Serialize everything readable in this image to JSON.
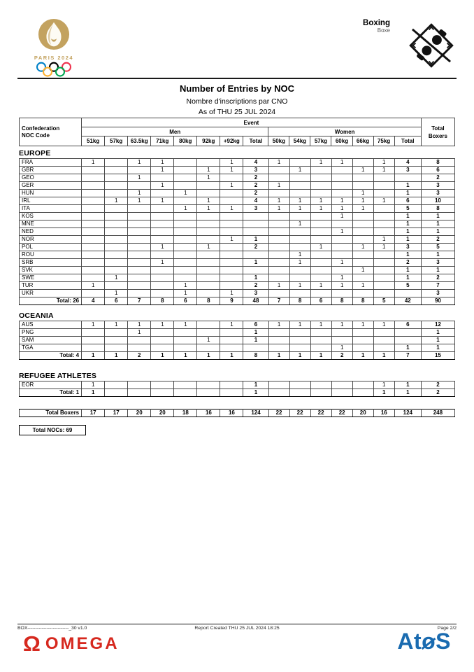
{
  "colors": {
    "paris_gold": "#C3A25F",
    "omega_red": "#D6281E",
    "atos_blue": "#1A6BB0",
    "ring_blue": "#0081C8",
    "ring_yellow": "#FCB131",
    "ring_black": "#000000",
    "ring_green": "#00A651",
    "ring_red": "#EE334E"
  },
  "page_header": {
    "logo_wordmark": "PARIS 2024",
    "sport_en": "Boxing",
    "sport_fr": "Boxe"
  },
  "title": {
    "line1": "Number of Entries by NOC",
    "line2": "Nombre d'inscriptions par CNO",
    "line3": "As of THU 25 JUL 2024"
  },
  "table": {
    "header": {
      "confederation": "Confederation",
      "noc_code": "NOC Code",
      "event": "Event",
      "men": "Men",
      "women": "Women",
      "total_boxers": [
        "Total",
        "Boxers"
      ],
      "men_cols": [
        "51kg",
        "57kg",
        "63.5kg",
        "71kg",
        "80kg",
        "92kg",
        "+92kg",
        "Total"
      ],
      "women_cols": [
        "50kg",
        "54kg",
        "57kg",
        "60kg",
        "66kg",
        "75kg",
        "Total"
      ]
    },
    "sections": [
      {
        "name": "EUROPE",
        "rows": [
          {
            "noc": "FRA",
            "men": [
              "1",
              "",
              "1",
              "1",
              "",
              "",
              "1"
            ],
            "men_total": "4",
            "women": [
              "1",
              "",
              "1",
              "1",
              "",
              "1"
            ],
            "women_total": "4",
            "boxers": "8"
          },
          {
            "noc": "GBR",
            "men": [
              "",
              "",
              "",
              "1",
              "",
              "1",
              "1"
            ],
            "men_total": "3",
            "women": [
              "",
              "1",
              "",
              "",
              "1",
              "1"
            ],
            "women_total": "3",
            "boxers": "6"
          },
          {
            "noc": "GEO",
            "men": [
              "",
              "",
              "1",
              "",
              "",
              "1",
              ""
            ],
            "men_total": "2",
            "women": [
              "",
              "",
              "",
              "",
              "",
              ""
            ],
            "women_total": "",
            "boxers": "2"
          },
          {
            "noc": "GER",
            "men": [
              "",
              "",
              "",
              "1",
              "",
              "",
              "1"
            ],
            "men_total": "2",
            "women": [
              "1",
              "",
              "",
              "",
              "",
              ""
            ],
            "women_total": "1",
            "boxers": "3"
          },
          {
            "noc": "HUN",
            "men": [
              "",
              "",
              "1",
              "",
              "1",
              "",
              ""
            ],
            "men_total": "2",
            "women": [
              "",
              "",
              "",
              "",
              "1",
              ""
            ],
            "women_total": "1",
            "boxers": "3"
          },
          {
            "noc": "IRL",
            "men": [
              "",
              "1",
              "1",
              "1",
              "",
              "1",
              ""
            ],
            "men_total": "4",
            "women": [
              "1",
              "1",
              "1",
              "1",
              "1",
              "1"
            ],
            "women_total": "6",
            "boxers": "10"
          },
          {
            "noc": "ITA",
            "men": [
              "",
              "",
              "",
              "",
              "1",
              "1",
              "1"
            ],
            "men_total": "3",
            "women": [
              "1",
              "1",
              "1",
              "1",
              "1",
              ""
            ],
            "women_total": "5",
            "boxers": "8"
          },
          {
            "noc": "KOS",
            "men": [
              "",
              "",
              "",
              "",
              "",
              "",
              ""
            ],
            "men_total": "",
            "women": [
              "",
              "",
              "",
              "1",
              "",
              ""
            ],
            "women_total": "1",
            "boxers": "1"
          },
          {
            "noc": "MNE",
            "men": [
              "",
              "",
              "",
              "",
              "",
              "",
              ""
            ],
            "men_total": "",
            "women": [
              "",
              "1",
              "",
              "",
              "",
              ""
            ],
            "women_total": "1",
            "boxers": "1"
          },
          {
            "noc": "NED",
            "men": [
              "",
              "",
              "",
              "",
              "",
              "",
              ""
            ],
            "men_total": "",
            "women": [
              "",
              "",
              "",
              "1",
              "",
              ""
            ],
            "women_total": "1",
            "boxers": "1"
          },
          {
            "noc": "NOR",
            "men": [
              "",
              "",
              "",
              "",
              "",
              "",
              "1"
            ],
            "men_total": "1",
            "women": [
              "",
              "",
              "",
              "",
              "",
              "1"
            ],
            "women_total": "1",
            "boxers": "2"
          },
          {
            "noc": "POL",
            "men": [
              "",
              "",
              "",
              "1",
              "",
              "1",
              ""
            ],
            "men_total": "2",
            "women": [
              "",
              "",
              "1",
              "",
              "1",
              "1"
            ],
            "women_total": "3",
            "boxers": "5"
          },
          {
            "noc": "ROU",
            "men": [
              "",
              "",
              "",
              "",
              "",
              "",
              ""
            ],
            "men_total": "",
            "women": [
              "",
              "1",
              "",
              "",
              "",
              ""
            ],
            "women_total": "1",
            "boxers": "1"
          },
          {
            "noc": "SRB",
            "men": [
              "",
              "",
              "",
              "1",
              "",
              "",
              ""
            ],
            "men_total": "1",
            "women": [
              "",
              "1",
              "",
              "1",
              "",
              ""
            ],
            "women_total": "2",
            "boxers": "3"
          },
          {
            "noc": "SVK",
            "men": [
              "",
              "",
              "",
              "",
              "",
              "",
              ""
            ],
            "men_total": "",
            "women": [
              "",
              "",
              "",
              "",
              "1",
              ""
            ],
            "women_total": "1",
            "boxers": "1"
          },
          {
            "noc": "SWE",
            "men": [
              "",
              "1",
              "",
              "",
              "",
              "",
              ""
            ],
            "men_total": "1",
            "women": [
              "",
              "",
              "",
              "1",
              "",
              ""
            ],
            "women_total": "1",
            "boxers": "2"
          },
          {
            "noc": "TUR",
            "men": [
              "1",
              "",
              "",
              "",
              "1",
              "",
              ""
            ],
            "men_total": "2",
            "women": [
              "1",
              "1",
              "1",
              "1",
              "1",
              ""
            ],
            "women_total": "5",
            "boxers": "7"
          },
          {
            "noc": "UKR",
            "men": [
              "",
              "1",
              "",
              "",
              "1",
              "",
              "1"
            ],
            "men_total": "3",
            "women": [
              "",
              "",
              "",
              "",
              "",
              ""
            ],
            "women_total": "",
            "boxers": "3"
          }
        ],
        "total": {
          "label": "Total: 26",
          "men": [
            "4",
            "6",
            "7",
            "8",
            "6",
            "8",
            "9"
          ],
          "men_total": "48",
          "women": [
            "7",
            "8",
            "6",
            "8",
            "8",
            "5"
          ],
          "women_total": "42",
          "boxers": "90"
        }
      },
      {
        "name": "OCEANIA",
        "rows": [
          {
            "noc": "AUS",
            "men": [
              "1",
              "1",
              "1",
              "1",
              "1",
              "",
              "1"
            ],
            "men_total": "6",
            "women": [
              "1",
              "1",
              "1",
              "1",
              "1",
              "1"
            ],
            "women_total": "6",
            "boxers": "12"
          },
          {
            "noc": "PNG",
            "men": [
              "",
              "",
              "1",
              "",
              "",
              "",
              ""
            ],
            "men_total": "1",
            "women": [
              "",
              "",
              "",
              "",
              "",
              ""
            ],
            "women_total": "",
            "boxers": "1"
          },
          {
            "noc": "SAM",
            "men": [
              "",
              "",
              "",
              "",
              "",
              "1",
              ""
            ],
            "men_total": "1",
            "women": [
              "",
              "",
              "",
              "",
              "",
              ""
            ],
            "women_total": "",
            "boxers": "1"
          },
          {
            "noc": "TGA",
            "men": [
              "",
              "",
              "",
              "",
              "",
              "",
              ""
            ],
            "men_total": "",
            "women": [
              "",
              "",
              "",
              "1",
              "",
              ""
            ],
            "women_total": "1",
            "boxers": "1"
          }
        ],
        "total": {
          "label": "Total: 4",
          "men": [
            "1",
            "1",
            "2",
            "1",
            "1",
            "1",
            "1"
          ],
          "men_total": "8",
          "women": [
            "1",
            "1",
            "1",
            "2",
            "1",
            "1"
          ],
          "women_total": "7",
          "boxers": "15"
        }
      },
      {
        "name": "REFUGEE ATHLETES",
        "rows": [
          {
            "noc": "EOR",
            "men": [
              "1",
              "",
              "",
              "",
              "",
              "",
              ""
            ],
            "men_total": "1",
            "women": [
              "",
              "",
              "",
              "",
              "",
              "1"
            ],
            "women_total": "1",
            "boxers": "2"
          }
        ],
        "total": {
          "label": "Total: 1",
          "men": [
            "1",
            "",
            "",
            "",
            "",
            "",
            ""
          ],
          "men_total": "1",
          "women": [
            "",
            "",
            "",
            "",
            "",
            "1"
          ],
          "women_total": "1",
          "boxers": "2"
        }
      }
    ],
    "summary": {
      "label": "Total Boxers",
      "men": [
        "17",
        "17",
        "20",
        "20",
        "18",
        "16",
        "16"
      ],
      "men_total": "124",
      "women": [
        "22",
        "22",
        "22",
        "22",
        "20",
        "16"
      ],
      "women_total": "124",
      "boxers": "248"
    },
    "total_nocs": "Total NOCs: 69"
  },
  "footer": {
    "code": "BOX--------------------------_30 v1.0",
    "created": "Report Created  THU 25 JUL 2024 18:25",
    "page": "Page 2/2",
    "omega": {
      "symbol": "Ω",
      "text": "OMEGA"
    },
    "atos": {
      "pre": "At",
      "o": "o",
      "post": "S"
    }
  }
}
